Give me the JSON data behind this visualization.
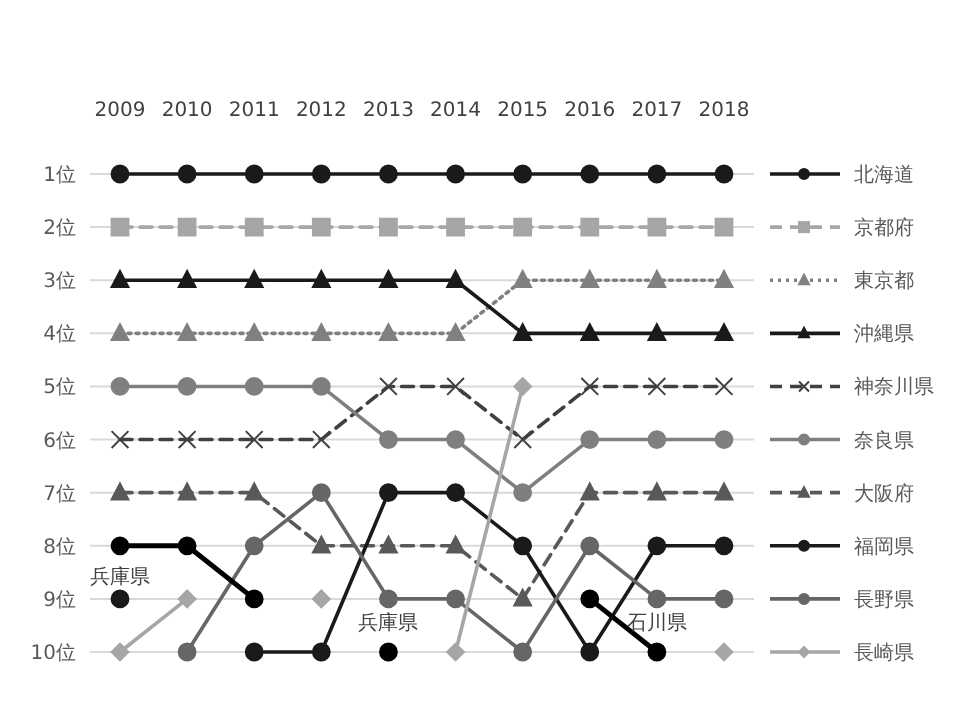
{
  "chart_data": {
    "type": "line",
    "categories": [
      "2009",
      "2010",
      "2011",
      "2012",
      "2013",
      "2014",
      "2015",
      "2016",
      "2017",
      "2018"
    ],
    "ylim": [
      10,
      1
    ],
    "yticks": [
      {
        "value": 1,
        "label": "1位"
      },
      {
        "value": 2,
        "label": "2位"
      },
      {
        "value": 3,
        "label": "3位"
      },
      {
        "value": 4,
        "label": "4位"
      },
      {
        "value": 5,
        "label": "5位"
      },
      {
        "value": 6,
        "label": "6位"
      },
      {
        "value": 7,
        "label": "7位"
      },
      {
        "value": 8,
        "label": "8位"
      },
      {
        "value": 9,
        "label": "9位"
      },
      {
        "value": 10,
        "label": "10位"
      }
    ],
    "grid": "y",
    "legend": "right",
    "series": [
      {
        "name": "北海道",
        "color": "#1a1a1a",
        "marker": "circle",
        "line_style": "solid",
        "values": [
          1,
          1,
          1,
          1,
          1,
          1,
          1,
          1,
          1,
          1
        ]
      },
      {
        "name": "京都府",
        "color": "#a6a6a6",
        "marker": "square",
        "line_style": "dashed",
        "values": [
          2,
          2,
          2,
          2,
          2,
          2,
          2,
          2,
          2,
          2
        ]
      },
      {
        "name": "東京都",
        "color": "#808080",
        "marker": "triangle",
        "line_style": "dotted",
        "values": [
          4,
          4,
          4,
          4,
          4,
          4,
          3,
          3,
          3,
          3
        ]
      },
      {
        "name": "沖縄県",
        "color": "#1a1a1a",
        "marker": "triangle",
        "line_style": "solid",
        "values": [
          3,
          3,
          3,
          3,
          3,
          3,
          4,
          4,
          4,
          4
        ]
      },
      {
        "name": "神奈川県",
        "color": "#404040",
        "marker": "cross",
        "line_style": "dashed",
        "values": [
          6,
          6,
          6,
          6,
          5,
          5,
          6,
          5,
          5,
          5
        ]
      },
      {
        "name": "奈良県",
        "color": "#7f7f7f",
        "marker": "circle",
        "line_style": "solid",
        "values": [
          5,
          5,
          5,
          5,
          6,
          6,
          7,
          6,
          6,
          6
        ]
      },
      {
        "name": "大阪府",
        "color": "#595959",
        "marker": "triangle",
        "line_style": "dashed",
        "values": [
          7,
          7,
          7,
          8,
          8,
          8,
          9,
          7,
          7,
          7
        ]
      },
      {
        "name": "福岡県",
        "color": "#1a1a1a",
        "marker": "circle",
        "line_style": "solid",
        "values": [
          9,
          null,
          10,
          10,
          7,
          7,
          8,
          10,
          8,
          8
        ]
      },
      {
        "name": "長野県",
        "color": "#666666",
        "marker": "circle",
        "line_style": "solid",
        "values": [
          null,
          10,
          8,
          7,
          9,
          9,
          10,
          8,
          9,
          9
        ]
      },
      {
        "name": "長崎県",
        "color": "#a6a6a6",
        "marker": "diamond",
        "line_style": "solid",
        "values": [
          10,
          9,
          null,
          9,
          null,
          10,
          5,
          null,
          null,
          10
        ]
      },
      {
        "color": "#000000",
        "marker": "circle",
        "line_style": "solid",
        "values": [
          8,
          8,
          9,
          null,
          10,
          null,
          null,
          null,
          null,
          null
        ]
      },
      {
        "color": "#000000",
        "marker": "circle",
        "line_style": "solid",
        "values": [
          null,
          null,
          null,
          null,
          null,
          null,
          null,
          9,
          10,
          null
        ]
      }
    ],
    "annotations": [
      {
        "text": "兵庫県",
        "x": "2009",
        "y": 8
      },
      {
        "text": "兵庫県",
        "x": "2013",
        "y": 10
      },
      {
        "text": "石川県",
        "x": "2017",
        "y": 10
      }
    ]
  }
}
